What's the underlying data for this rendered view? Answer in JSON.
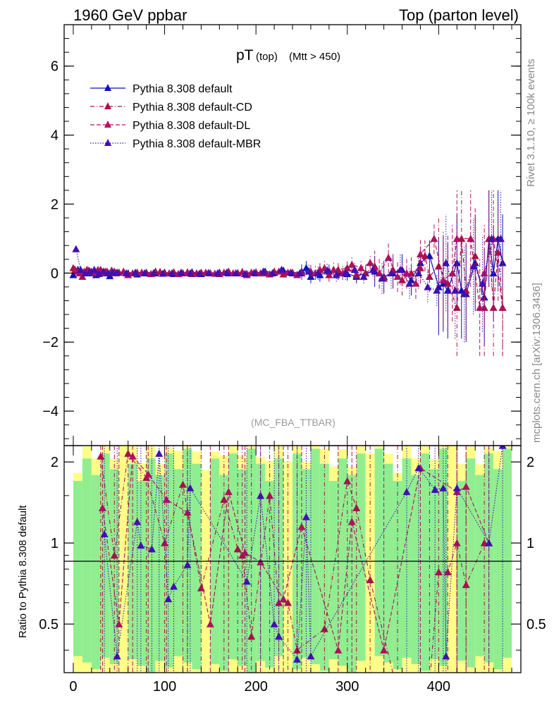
{
  "header": {
    "left": "1960 GeV ppbar",
    "right": "Top (parton level)"
  },
  "chart_data": {
    "type": "scatter",
    "title": "pT",
    "title_sub": "(top)",
    "title_cut": "(Mtt > 450)",
    "analysis_tag": "(MC_FBA_TTBAR)",
    "side_label_top": "Rivet 3.1.10, ≥ 100k events",
    "side_label_bottom": "mcplots.cern.ch [arXiv:1306.3436]",
    "ratio_ylabel": "Ratio to Pythia 8.308 default",
    "xlim": [
      -10,
      490
    ],
    "ylim": [
      -5.0,
      7.2
    ],
    "ratio_ylim": [
      0.33,
      2.3
    ],
    "x_ticks": [
      0,
      100,
      200,
      300,
      400
    ],
    "x_tick_labels": [
      "0",
      "100",
      "200",
      "300",
      "400"
    ],
    "y_ticks": [
      -4,
      -2,
      0,
      2,
      4,
      6
    ],
    "y_tick_labels": [
      "−4",
      "−2",
      "0",
      "2",
      "4",
      "6"
    ],
    "ratio_ticks": [
      0.5,
      1,
      2
    ],
    "ratio_tick_labels": [
      "0.5",
      "1",
      "2"
    ],
    "legend_position": "top-left",
    "colors": {
      "default": "#1010b8",
      "cd": "#a8104a",
      "dl": "#b01060",
      "mbr": "#4010b0",
      "band_green": "#90ee90",
      "band_yellow": "#ffff88"
    },
    "series": [
      {
        "name": "Pythia 8.308 default",
        "style": "solid",
        "x": [
          0,
          5,
          10,
          15,
          20,
          25,
          30,
          35,
          40,
          45,
          50,
          60,
          70,
          80,
          90,
          100,
          110,
          120,
          130,
          140,
          150,
          160,
          170,
          180,
          190,
          200,
          210,
          220,
          230,
          240,
          250,
          255,
          260,
          270,
          280,
          290,
          300,
          310,
          320,
          330,
          340,
          350,
          360,
          370,
          380,
          390,
          400,
          405,
          410,
          420,
          425,
          430,
          440,
          450,
          455,
          460,
          465,
          470
        ],
        "y": [
          -0.05,
          0.1,
          0.02,
          0.08,
          0.0,
          -0.05,
          0.05,
          0.0,
          -0.08,
          0.03,
          0.02,
          0.0,
          -0.03,
          0.02,
          0.0,
          0.02,
          -0.02,
          0.0,
          0.03,
          -0.02,
          0.0,
          0.02,
          0.0,
          0.01,
          -0.02,
          0.0,
          0.05,
          0.02,
          0.08,
          0.0,
          0.05,
          0.15,
          -0.1,
          -0.05,
          0.05,
          0.0,
          -0.02,
          -0.1,
          0.0,
          0.05,
          -0.1,
          0.0,
          0.1,
          -0.2,
          0.3,
          0.5,
          -0.4,
          -0.3,
          -0.5,
          0.3,
          -0.5,
          -0.6,
          0.3,
          -0.7,
          1.0,
          0.0,
          1.0,
          0.3
        ]
      },
      {
        "name": "Pythia 8.308 default-CD",
        "style": "dash-dot",
        "x": [
          0,
          5,
          10,
          15,
          20,
          25,
          30,
          35,
          40,
          45,
          50,
          60,
          70,
          80,
          90,
          100,
          110,
          120,
          130,
          140,
          150,
          160,
          170,
          180,
          190,
          200,
          210,
          220,
          230,
          240,
          250,
          260,
          270,
          280,
          290,
          300,
          310,
          320,
          330,
          340,
          350,
          360,
          370,
          380,
          385,
          390,
          400,
          410,
          420,
          425,
          430,
          440,
          450,
          455,
          460,
          465,
          470
        ],
        "y": [
          0.15,
          0.05,
          -0.1,
          0.1,
          0.05,
          0.0,
          0.1,
          0.05,
          0.0,
          0.05,
          0.02,
          -0.05,
          0.02,
          0.0,
          0.05,
          0.0,
          0.03,
          0.0,
          -0.02,
          0.02,
          0.0,
          -0.02,
          0.05,
          0.0,
          -0.05,
          0.03,
          0.0,
          0.05,
          -0.03,
          0.02,
          0.0,
          0.05,
          0.1,
          -0.05,
          0.1,
          0.15,
          -0.05,
          0.0,
          0.2,
          -0.15,
          0.1,
          -0.2,
          0.0,
          0.15,
          0.5,
          -0.1,
          0.2,
          -0.3,
          -1.0,
          1.0,
          -0.5,
          0.5,
          -1.0,
          1.0,
          -1.0,
          0.6,
          -1.0
        ]
      },
      {
        "name": "Pythia 8.308 default-DL",
        "style": "dashed",
        "x": [
          2,
          7,
          12,
          17,
          22,
          27,
          32,
          37,
          42,
          47,
          55,
          65,
          75,
          85,
          95,
          105,
          115,
          125,
          135,
          145,
          155,
          165,
          175,
          185,
          195,
          205,
          215,
          225,
          235,
          245,
          265,
          275,
          285,
          295,
          305,
          315,
          325,
          335,
          345,
          355,
          365,
          375,
          380,
          395,
          405,
          415,
          420,
          435,
          445,
          450,
          460,
          470
        ],
        "y": [
          0.1,
          0.0,
          0.05,
          0.08,
          0.02,
          0.1,
          0.0,
          0.05,
          0.08,
          0.0,
          0.05,
          0.0,
          0.02,
          -0.02,
          0.04,
          0.0,
          -0.02,
          0.03,
          0.0,
          0.02,
          -0.01,
          0.02,
          0.0,
          0.04,
          0.02,
          0.0,
          -0.03,
          0.05,
          0.02,
          -0.05,
          0.0,
          0.15,
          0.1,
          0.0,
          0.25,
          0.15,
          0.3,
          0.0,
          0.45,
          -0.1,
          0.0,
          -0.3,
          0.55,
          1.0,
          -0.2,
          0.0,
          1.0,
          1.0,
          -1.0,
          0.0,
          1.0,
          -1.0
        ]
      },
      {
        "name": "Pythia 8.308 default-MBR",
        "style": "dotted",
        "x": [
          3,
          8,
          13,
          18,
          23,
          28,
          33,
          38,
          43,
          48,
          58,
          68,
          78,
          88,
          98,
          108,
          118,
          128,
          138,
          148,
          158,
          168,
          178,
          188,
          198,
          208,
          218,
          228,
          238,
          248,
          258,
          268,
          278,
          288,
          298,
          308,
          318,
          328,
          338,
          348,
          358,
          368,
          378,
          388,
          398,
          408,
          418,
          428,
          438,
          448,
          458,
          468
        ],
        "y": [
          0.7,
          0.1,
          0.0,
          0.05,
          0.1,
          -0.02,
          0.05,
          0.0,
          0.03,
          0.02,
          0.0,
          0.02,
          0.0,
          0.01,
          -0.01,
          0.0,
          0.02,
          0.0,
          -0.01,
          0.01,
          0.0,
          0.02,
          0.0,
          -0.02,
          0.01,
          0.05,
          0.0,
          0.1,
          0.02,
          0.0,
          0.05,
          0.0,
          0.08,
          -0.05,
          0.0,
          0.1,
          -0.1,
          0.1,
          -0.15,
          0.0,
          0.1,
          -0.3,
          0.0,
          -0.4,
          -0.5,
          0.3,
          -0.5,
          -0.6,
          0.2,
          -0.3,
          1.0,
          1.0
        ]
      }
    ],
    "ratio_series": [
      {
        "name": "Pythia 8.308 default-CD",
        "x": [
          30,
          45,
          60,
          80,
          100,
          120,
          140,
          165,
          180,
          185,
          195,
          215,
          225,
          235,
          245,
          275,
          300,
          310,
          325,
          355,
          390,
          400,
          410,
          420,
          430,
          450
        ],
        "y": [
          2.1,
          0.9,
          2.15,
          1.75,
          1.0,
          1.65,
          0.68,
          1.45,
          0.95,
          0.9,
          0.45,
          1.5,
          0.6,
          0.6,
          0.4,
          0.48,
          1.7,
          1.35,
          0.73,
          0.28,
          0.3,
          0.78,
          0.78,
          1.0,
          0.7,
          1.0
        ]
      },
      {
        "name": "Pythia 8.308 default-DL",
        "x": [
          32,
          50,
          65,
          82,
          102,
          125,
          150,
          170,
          188,
          205,
          230,
          250,
          290,
          305,
          340,
          380,
          420,
          430,
          455
        ],
        "y": [
          1.35,
          0.5,
          2.1,
          1.8,
          1.45,
          1.3,
          0.5,
          1.55,
          0.92,
          0.85,
          0.62,
          1.15,
          0.4,
          1.2,
          0.4,
          1.9,
          1.55,
          1.62,
          1.0
        ]
      },
      {
        "name": "Pythia 8.308 default-MBR",
        "x": [
          34,
          48,
          70,
          74,
          86,
          94,
          104,
          110,
          125,
          128,
          190,
          205,
          220,
          225,
          245,
          255,
          260,
          365,
          378,
          396,
          405,
          408,
          420,
          455,
          470
        ],
        "y": [
          1.08,
          0.38,
          1.2,
          0.98,
          0.95,
          2.15,
          0.62,
          0.69,
          0.83,
          1.6,
          0.72,
          1.5,
          0.5,
          0.45,
          0.37,
          1.25,
          0.38,
          1.55,
          1.9,
          1.58,
          1.6,
          0.38,
          1.6,
          1.0,
          2.3
        ]
      }
    ]
  }
}
